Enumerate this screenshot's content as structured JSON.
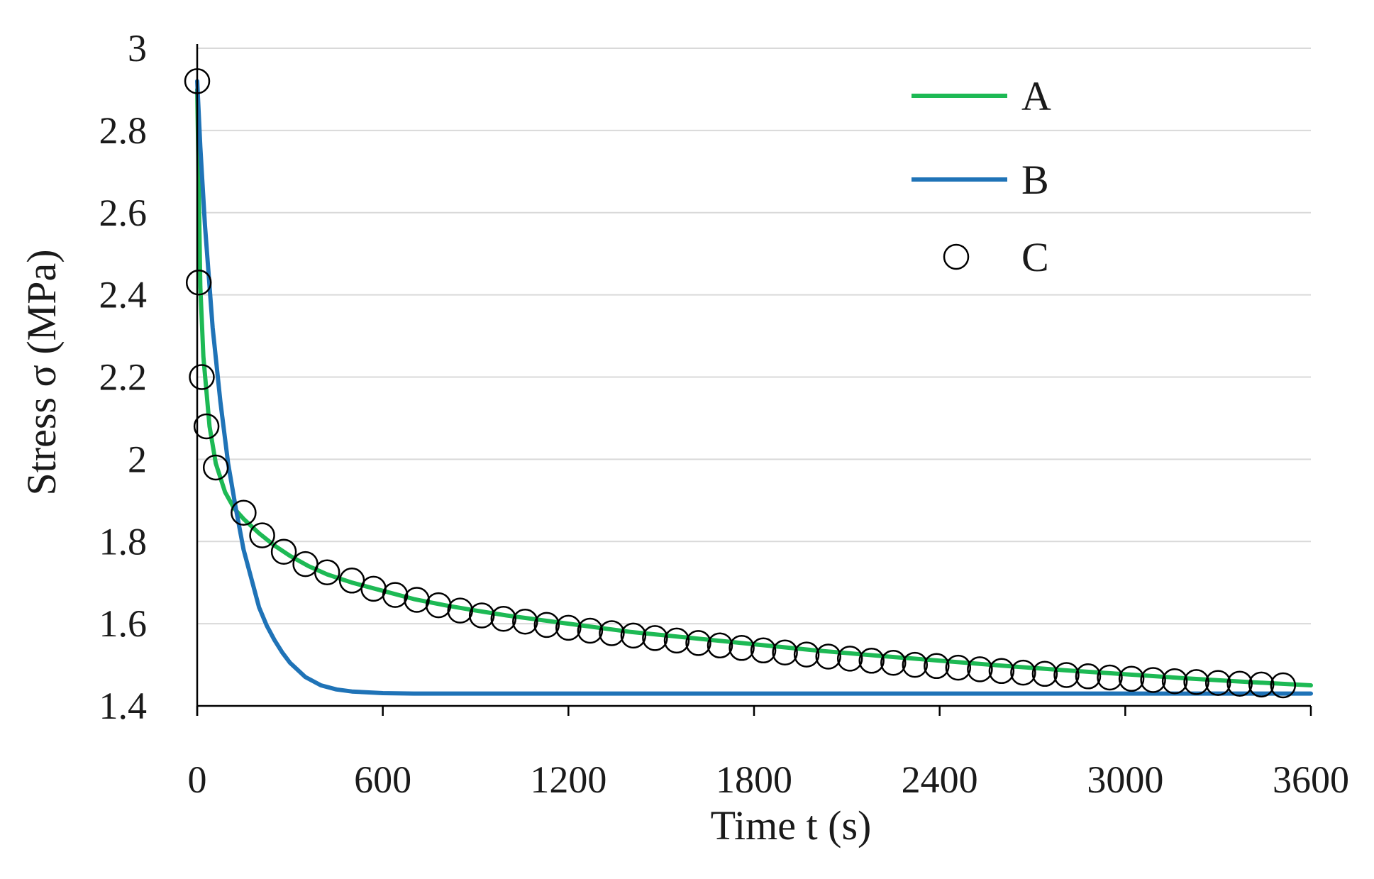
{
  "chart_data": {
    "type": "line",
    "title": "",
    "xlabel": "Time  t (s)",
    "ylabel": "Stress σ (MPa)",
    "xlim": [
      0,
      3600
    ],
    "ylim": [
      1.4,
      3.0
    ],
    "xticks": [
      0,
      600,
      1200,
      1800,
      2400,
      3000,
      3600
    ],
    "xtick_labels": [
      "0",
      "600",
      "1200",
      "1800",
      "2400",
      "3000",
      "3600"
    ],
    "yticks": [
      1.4,
      1.6,
      1.8,
      2.0,
      2.2,
      2.4,
      2.6,
      2.8,
      3.0
    ],
    "ytick_labels": [
      "1.4",
      "1.6",
      "1.8",
      "2",
      "2.2",
      "2.4",
      "2.6",
      "2.8",
      "3"
    ],
    "grid": "horizontal",
    "legend_position": "top-right",
    "series": [
      {
        "name": "A",
        "style": "line",
        "color": "#1db954",
        "x": [
          0,
          10,
          20,
          40,
          60,
          90,
          120,
          150,
          200,
          250,
          300,
          360,
          420,
          500,
          600,
          700,
          800,
          900,
          1000,
          1200,
          1400,
          1600,
          1800,
          2000,
          2200,
          2400,
          2600,
          2800,
          3000,
          3200,
          3400,
          3600
        ],
        "values": [
          2.9,
          2.42,
          2.25,
          2.08,
          1.99,
          1.92,
          1.88,
          1.855,
          1.82,
          1.79,
          1.765,
          1.74,
          1.72,
          1.7,
          1.68,
          1.66,
          1.645,
          1.632,
          1.62,
          1.6,
          1.58,
          1.565,
          1.55,
          1.535,
          1.522,
          1.51,
          1.498,
          1.487,
          1.477,
          1.467,
          1.458,
          1.45
        ]
      },
      {
        "name": "B",
        "style": "line",
        "color": "#1f73b7",
        "x": [
          0,
          10,
          25,
          50,
          75,
          100,
          125,
          150,
          175,
          200,
          225,
          250,
          275,
          300,
          350,
          400,
          450,
          500,
          600,
          700,
          800,
          1000,
          1500,
          2000,
          2500,
          3000,
          3600
        ],
        "values": [
          2.92,
          2.76,
          2.57,
          2.32,
          2.14,
          1.99,
          1.88,
          1.78,
          1.71,
          1.64,
          1.595,
          1.56,
          1.53,
          1.505,
          1.47,
          1.45,
          1.44,
          1.435,
          1.431,
          1.43,
          1.43,
          1.43,
          1.43,
          1.43,
          1.43,
          1.43,
          1.43
        ]
      },
      {
        "name": "C",
        "style": "markers",
        "color": "#000000",
        "x": [
          0,
          5,
          15,
          30,
          60,
          150,
          210,
          280,
          350,
          420,
          500,
          570,
          640,
          710,
          780,
          850,
          920,
          990,
          1060,
          1130,
          1200,
          1270,
          1340,
          1410,
          1480,
          1550,
          1620,
          1690,
          1760,
          1830,
          1900,
          1970,
          2040,
          2110,
          2180,
          2250,
          2320,
          2390,
          2460,
          2530,
          2600,
          2670,
          2740,
          2810,
          2880,
          2950,
          3020,
          3090,
          3160,
          3230,
          3300,
          3370,
          3440,
          3510
        ],
        "values": [
          2.92,
          2.43,
          2.2,
          2.08,
          1.98,
          1.87,
          1.815,
          1.775,
          1.745,
          1.725,
          1.705,
          1.685,
          1.67,
          1.658,
          1.645,
          1.632,
          1.62,
          1.612,
          1.605,
          1.597,
          1.59,
          1.583,
          1.577,
          1.571,
          1.565,
          1.559,
          1.553,
          1.547,
          1.541,
          1.535,
          1.53,
          1.525,
          1.52,
          1.515,
          1.51,
          1.505,
          1.5,
          1.497,
          1.493,
          1.489,
          1.485,
          1.481,
          1.478,
          1.475,
          1.472,
          1.469,
          1.466,
          1.463,
          1.46,
          1.458,
          1.456,
          1.454,
          1.452,
          1.45
        ]
      }
    ]
  }
}
